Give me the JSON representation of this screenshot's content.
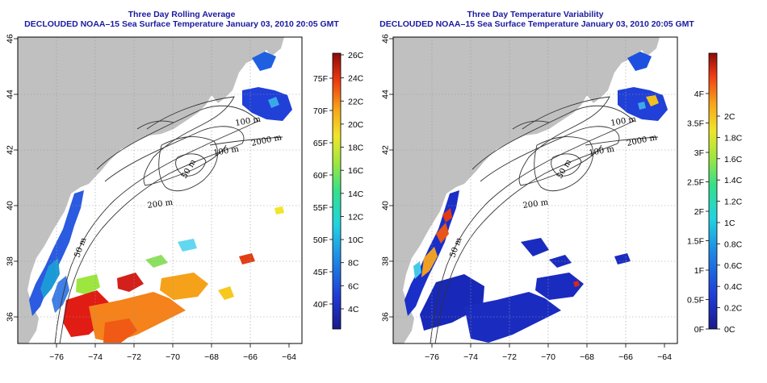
{
  "panels": [
    {
      "title": "Three Day Rolling Average",
      "subtitle": "DECLOUDED NOAA–15 Sea Surface Temperature January 03, 2010 20:05 GMT",
      "colorbar_right_labels": [
        "26C",
        "24C",
        "22C",
        "20C",
        "18C",
        "16C",
        "14C",
        "12C",
        "10C",
        "8C",
        "6C",
        "4C"
      ],
      "colorbar_left_labels": [
        "75F",
        "70F",
        "65F",
        "60F",
        "55F",
        "50F",
        "45F",
        "40F"
      ],
      "palette": "sst"
    },
    {
      "title": "Three Day Temperature Variability",
      "subtitle": "DECLOUDED NOAA–15 Sea Surface Temperature January 03, 2010 20:05 GMT",
      "colorbar_right_labels": [
        "2C",
        "1.8C",
        "1.6C",
        "1.4C",
        "1.2C",
        "1C",
        "0.8C",
        "0.6C",
        "0.4C",
        "0.2C",
        "0C"
      ],
      "colorbar_left_labels": [
        "4F",
        "3.5F",
        "3F",
        "2.5F",
        "2F",
        "1.5F",
        "1F",
        "0.5F",
        "0F"
      ],
      "palette": "variability"
    }
  ],
  "axes": {
    "x_ticks": [
      "−76",
      "−74",
      "−72",
      "−70",
      "−68",
      "−66",
      "−64"
    ],
    "y_ticks": [
      "36",
      "38",
      "40",
      "42",
      "44",
      "46"
    ]
  },
  "contour_labels": [
    "50 m",
    "100 m",
    "200 m",
    "2000 m",
    "100 m",
    "50 m"
  ],
  "colors": {
    "land": "#c0c0c0",
    "ocean": "#ffffff",
    "title": "#1a1aa0",
    "gridline": "#9a9a9a"
  }
}
